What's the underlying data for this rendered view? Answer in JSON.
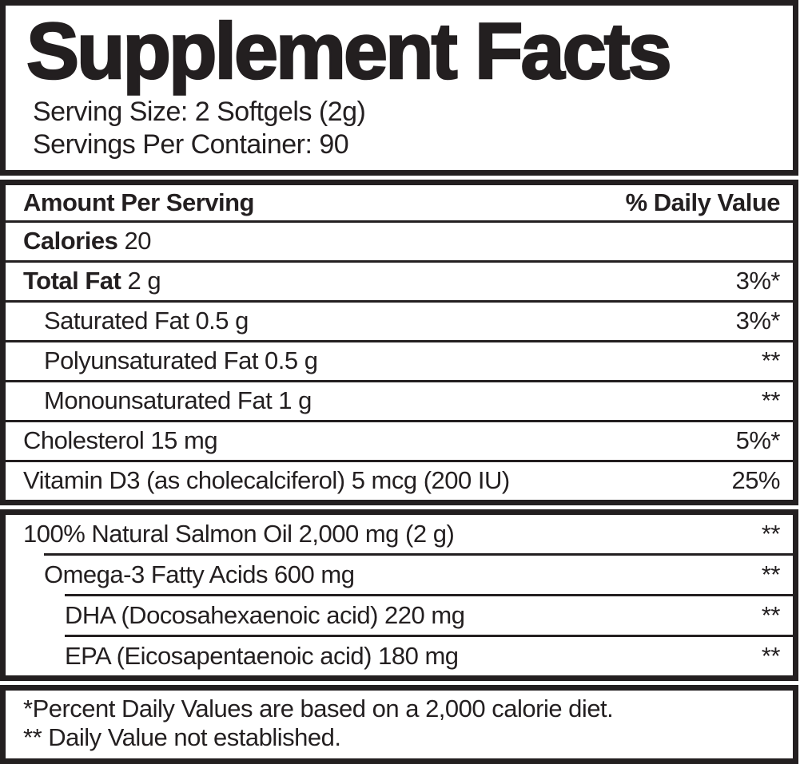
{
  "title": "Supplement Facts",
  "serving_size": "Serving Size: 2 Softgels (2g)",
  "servings_per_container": "Servings Per Container: 90",
  "header": {
    "amount": "Amount Per Serving",
    "daily_value": "% Daily Value"
  },
  "main_rows": [
    {
      "name": "Calories",
      "amount": "20",
      "dv": "",
      "bold": true,
      "indent": 0
    },
    {
      "name": "Total Fat",
      "amount": "2 g",
      "dv": "3%*",
      "bold": true,
      "indent": 0
    },
    {
      "name": "Saturated Fat",
      "amount": "0.5 g",
      "dv": "3%*",
      "bold": false,
      "indent": 1
    },
    {
      "name": "Polyunsaturated Fat",
      "amount": "0.5 g",
      "dv": "**",
      "bold": false,
      "indent": 1
    },
    {
      "name": "Monounsaturated Fat",
      "amount": "1 g",
      "dv": "**",
      "bold": false,
      "indent": 1
    },
    {
      "name": "Cholesterol",
      "amount": "15 mg",
      "dv": "5%*",
      "bold": false,
      "indent": 0
    },
    {
      "name": "Vitamin D3 (as cholecalciferol)",
      "amount": "5 mcg (200 IU)",
      "dv": "25%",
      "bold": false,
      "indent": 0
    }
  ],
  "oil_rows": [
    {
      "name": "100% Natural Salmon Oil",
      "amount": "2,000 mg (2 g)",
      "dv": "**",
      "bold": false,
      "indent": 0
    },
    {
      "name": "Omega-3 Fatty Acids",
      "amount": "600 mg",
      "dv": "**",
      "bold": false,
      "indent": 1
    },
    {
      "name": "DHA (Docosahexaenoic acid)",
      "amount": "220 mg",
      "dv": "**",
      "bold": false,
      "indent": 2
    },
    {
      "name": "EPA (Eicosapentaenoic acid)",
      "amount": "180 mg",
      "dv": "**",
      "bold": false,
      "indent": 2
    }
  ],
  "footnotes": [
    "*Percent Daily Values are based on a 2,000 calorie diet.",
    "** Daily Value not established."
  ],
  "colors": {
    "ink": "#231f20",
    "background": "#ffffff"
  }
}
